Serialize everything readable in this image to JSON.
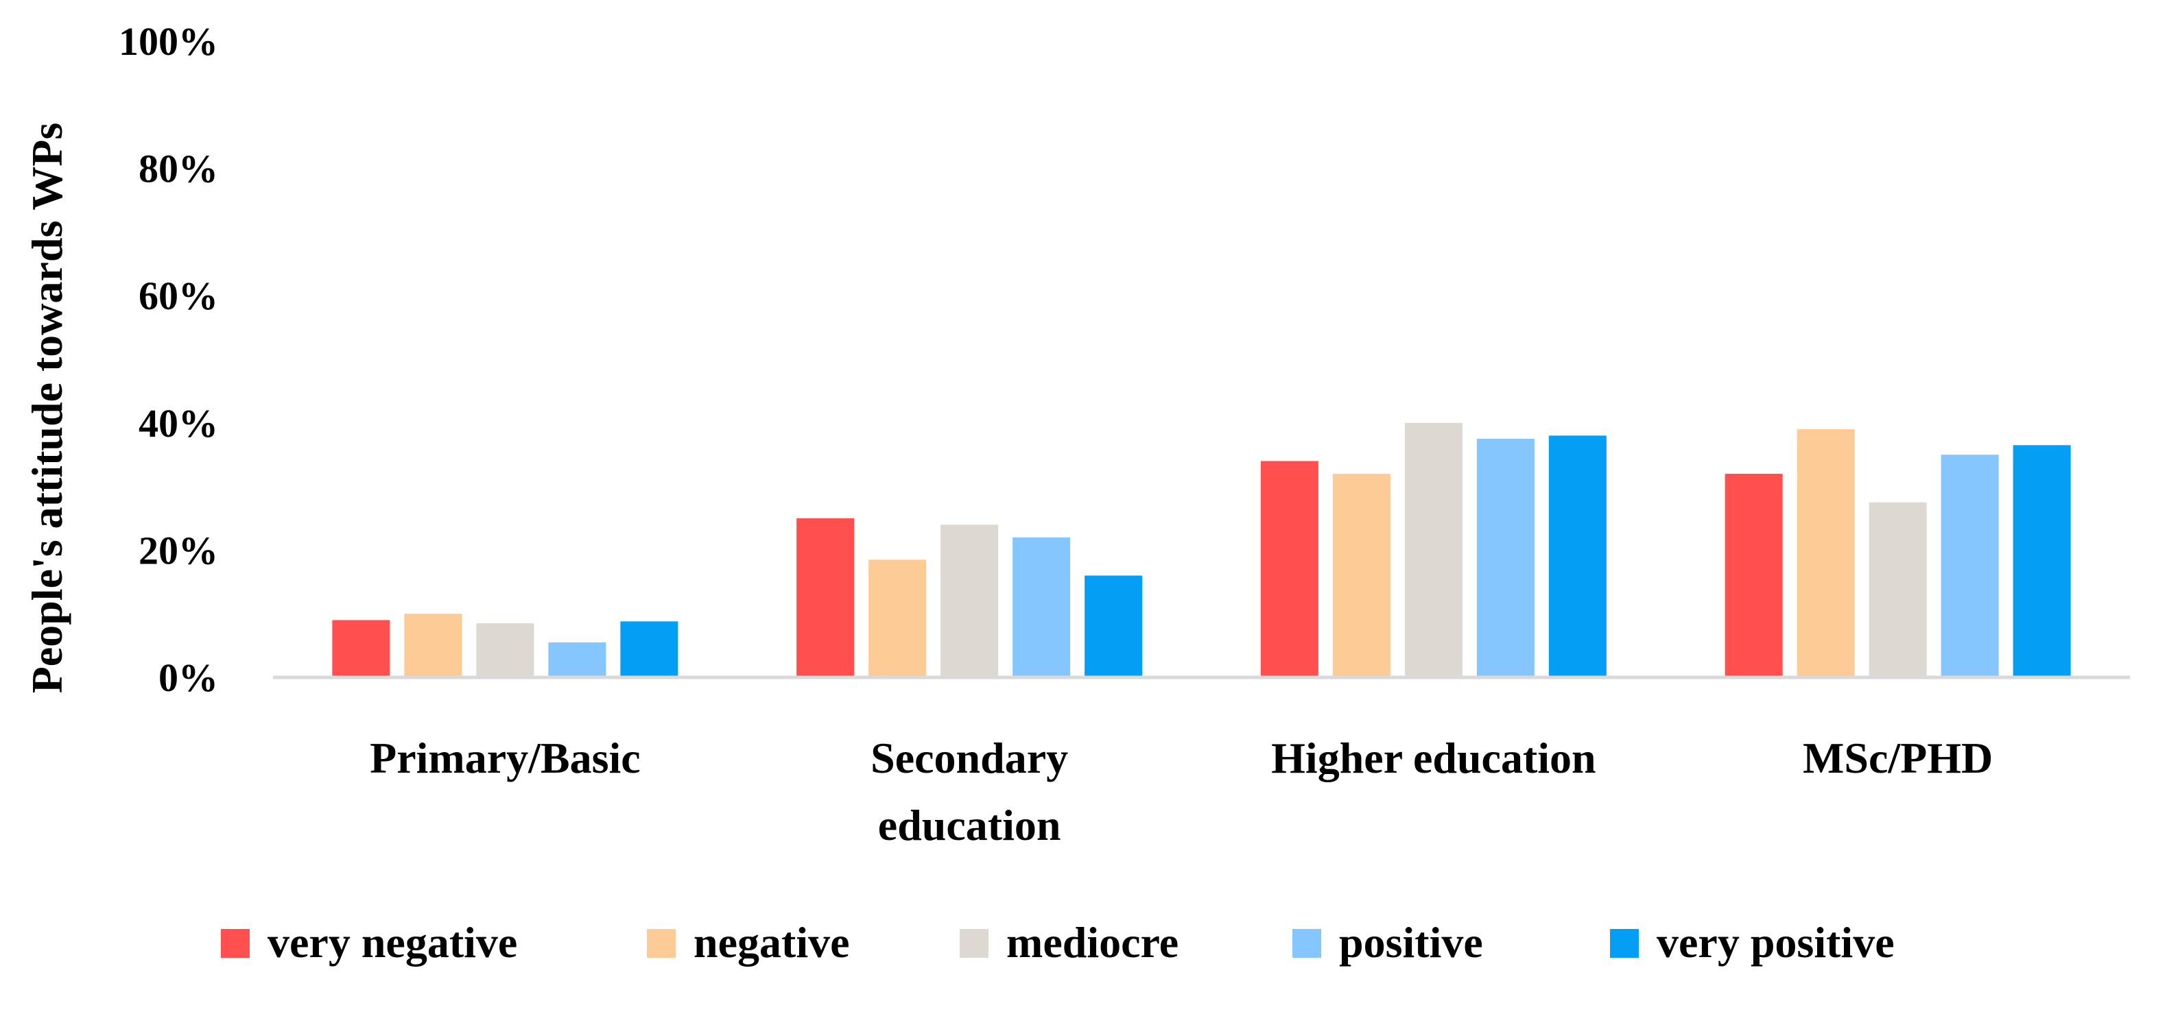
{
  "chart_data": {
    "type": "bar",
    "title": "",
    "xlabel": "",
    "ylabel": "People's attitude towards WPs",
    "ylim": [
      0,
      100
    ],
    "y_ticks": [
      "0%",
      "20%",
      "40%",
      "60%",
      "80%",
      "100%"
    ],
    "y_tick_values": [
      0,
      20,
      40,
      60,
      80,
      100
    ],
    "grid": false,
    "legend_position": "bottom",
    "categories": [
      [
        "Primary/Basic"
      ],
      [
        "Secondary",
        "education"
      ],
      [
        "Higher education"
      ],
      [
        "MSc/PHD"
      ]
    ],
    "series": [
      {
        "name": "very negative",
        "color": "#FF4F4F",
        "values": [
          9,
          25,
          34,
          32
        ]
      },
      {
        "name": "negative",
        "color": "#FDCB95",
        "values": [
          10,
          18.5,
          32,
          39
        ]
      },
      {
        "name": "mediocre",
        "color": "#DED8D2",
        "values": [
          8.5,
          24,
          40,
          27.5
        ]
      },
      {
        "name": "positive",
        "color": "#85C6FF",
        "values": [
          5.5,
          22,
          37.5,
          35
        ]
      },
      {
        "name": "very positive",
        "color": "#049FF5",
        "values": [
          8.8,
          16,
          38,
          36.5
        ]
      }
    ]
  }
}
